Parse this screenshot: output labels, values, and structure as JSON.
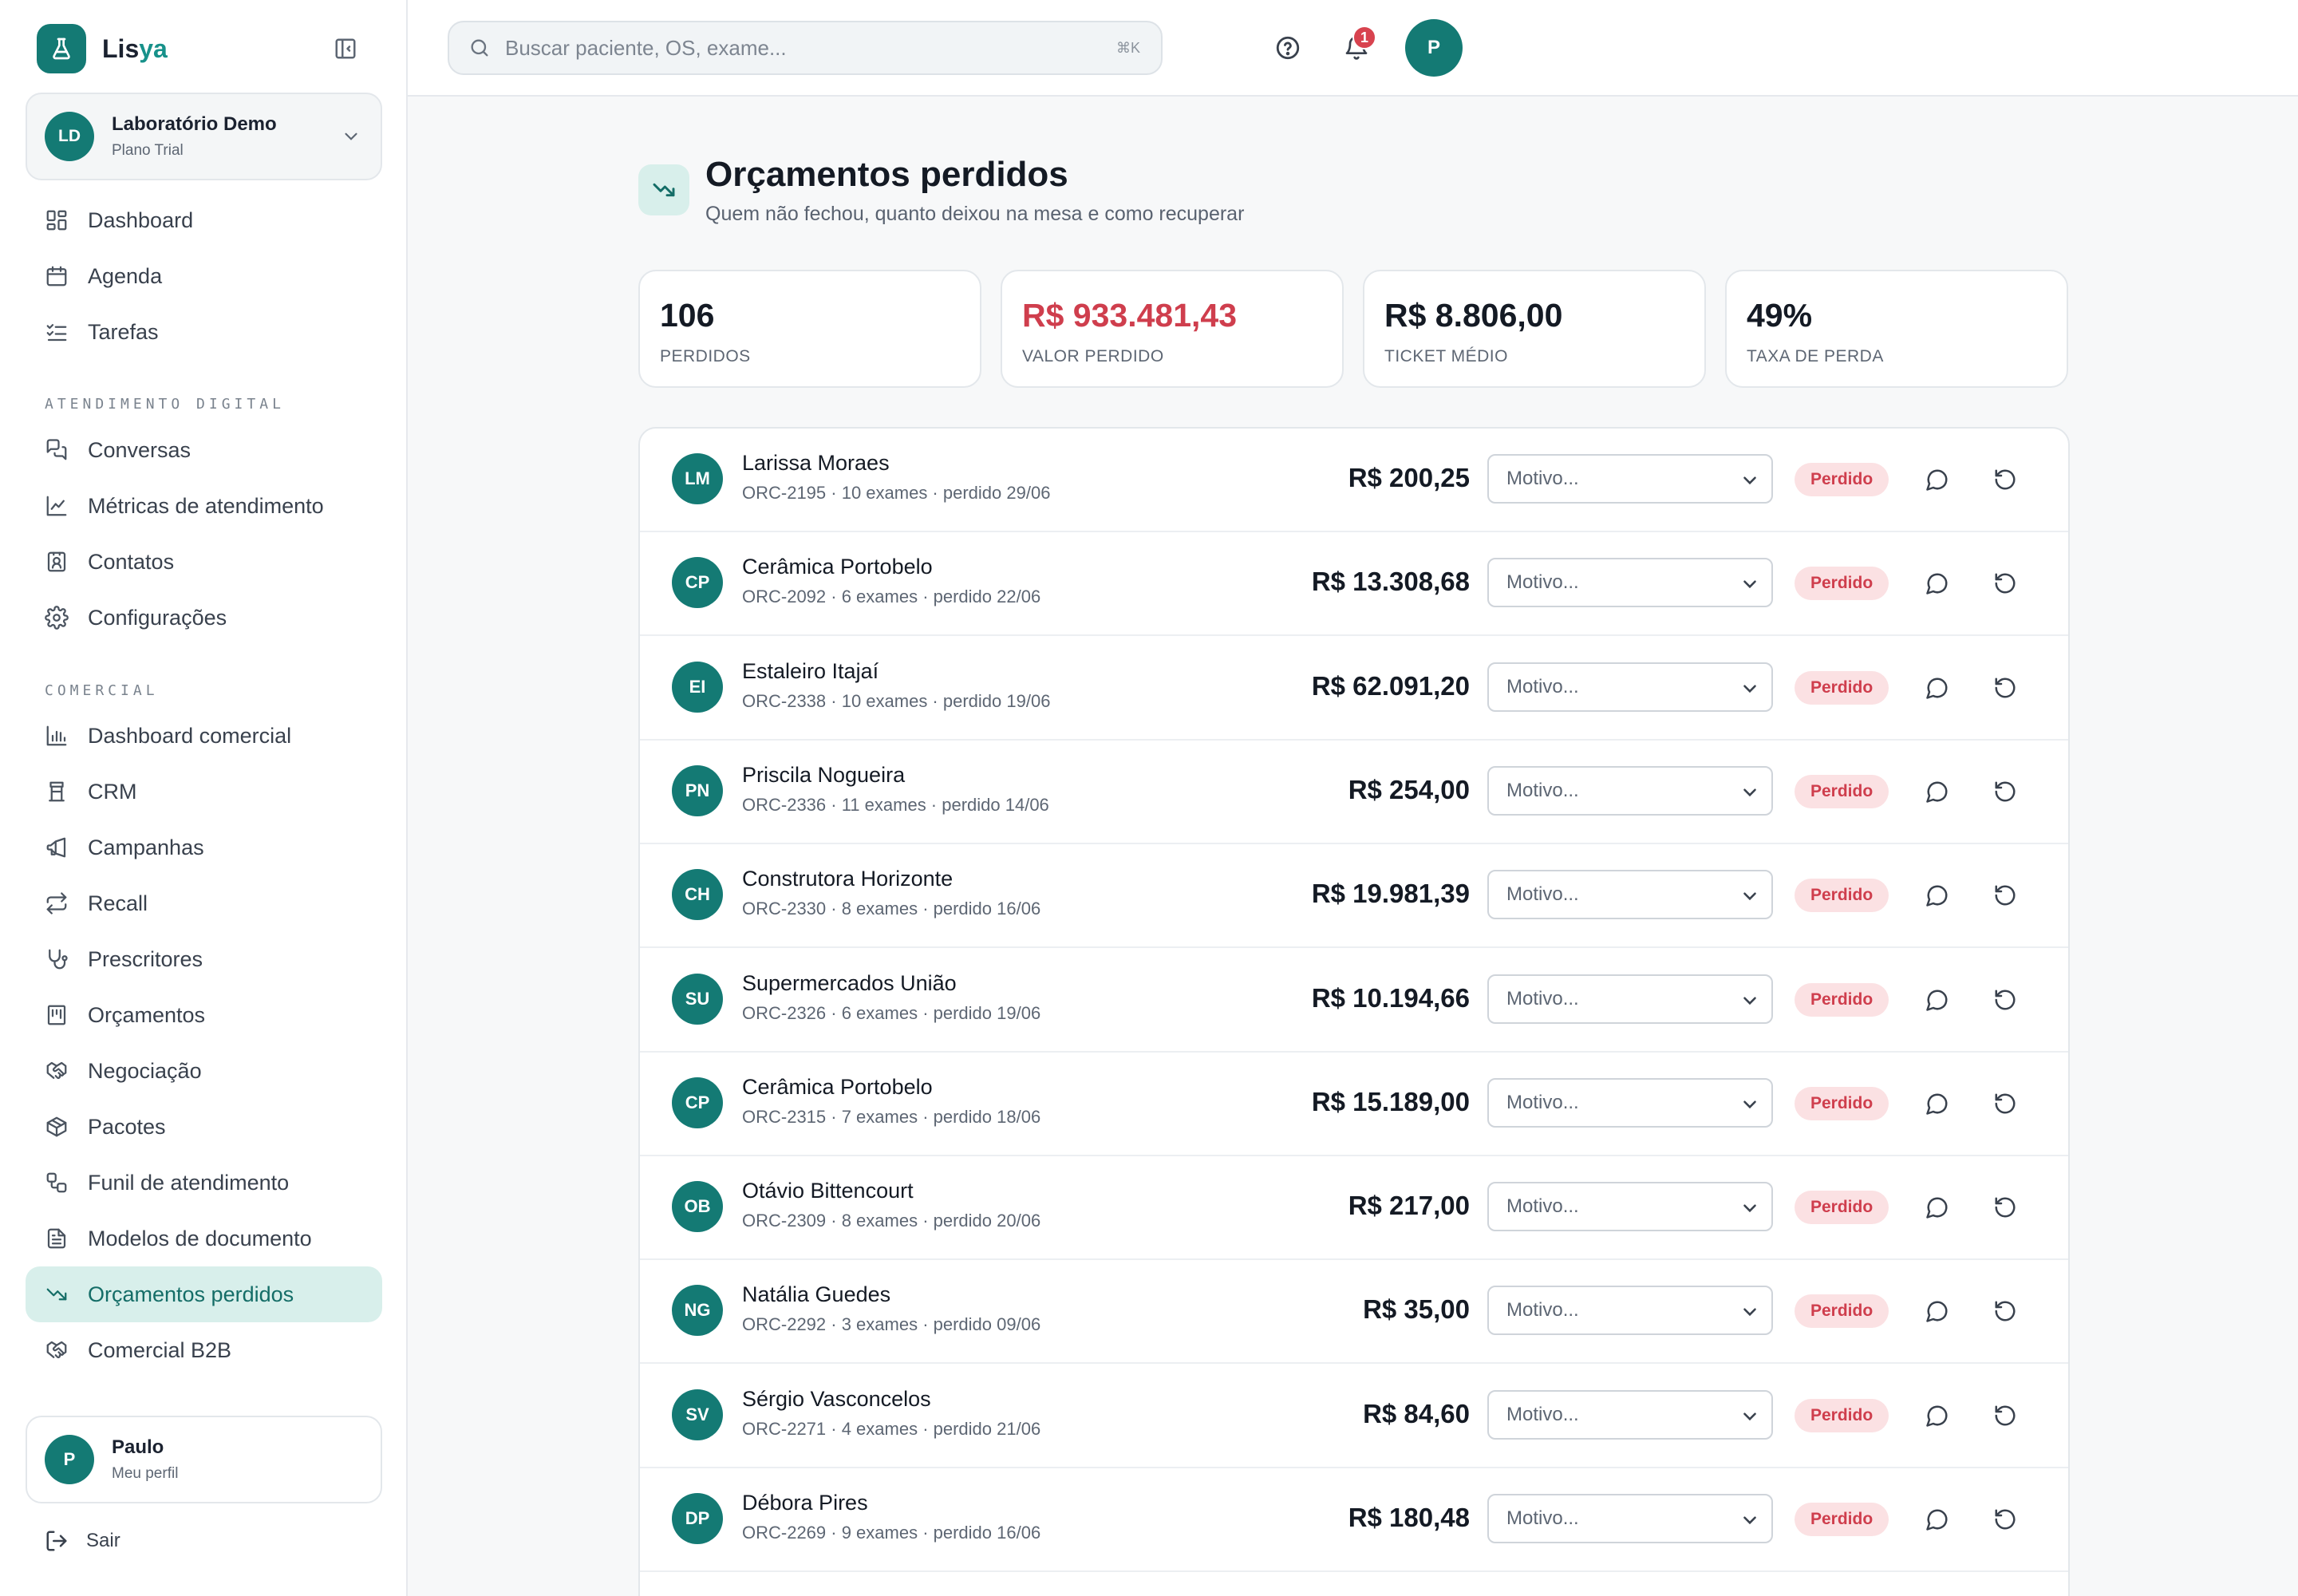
{
  "brand": {
    "name_main": "Lis",
    "name_accent": "ya"
  },
  "org": {
    "initials": "LD",
    "name": "Laboratório Demo",
    "plan": "Plano Trial"
  },
  "nav_top": [
    {
      "label": "Dashboard",
      "icon": "grid-icon"
    },
    {
      "label": "Agenda",
      "icon": "calendar-icon"
    },
    {
      "label": "Tarefas",
      "icon": "checklist-icon"
    }
  ],
  "section_digital": "ATENDIMENTO DIGITAL",
  "nav_digital": [
    {
      "label": "Conversas",
      "icon": "chat-bubbles-icon"
    },
    {
      "label": "Métricas de atendimento",
      "icon": "line-chart-icon"
    },
    {
      "label": "Contatos",
      "icon": "contact-card-icon"
    },
    {
      "label": "Configurações",
      "icon": "gear-icon"
    }
  ],
  "section_comercial": "COMERCIAL",
  "nav_comercial": [
    {
      "label": "Dashboard comercial",
      "icon": "bar-chart-icon"
    },
    {
      "label": "CRM",
      "icon": "crm-icon"
    },
    {
      "label": "Campanhas",
      "icon": "megaphone-icon"
    },
    {
      "label": "Recall",
      "icon": "repeat-icon"
    },
    {
      "label": "Prescritores",
      "icon": "stethoscope-icon"
    },
    {
      "label": "Orçamentos",
      "icon": "receipt-icon"
    },
    {
      "label": "Negociação",
      "icon": "handshake-icon"
    },
    {
      "label": "Pacotes",
      "icon": "package-icon"
    },
    {
      "label": "Funil de atendimento",
      "icon": "workflow-icon"
    },
    {
      "label": "Modelos de documento",
      "icon": "document-icon"
    },
    {
      "label": "Orçamentos perdidos",
      "icon": "trending-down-icon",
      "active": true
    },
    {
      "label": "Comercial B2B",
      "icon": "handshake-icon"
    }
  ],
  "profile": {
    "initials": "P",
    "name": "Paulo",
    "sub": "Meu perfil"
  },
  "logout_label": "Sair",
  "search": {
    "placeholder": "Buscar paciente, OS, exame...",
    "shortcut": "⌘K"
  },
  "notifications_count": "1",
  "user_initial": "P",
  "page": {
    "title": "Orçamentos perdidos",
    "subtitle": "Quem não fechou, quanto deixou na mesa e como recuperar"
  },
  "stats": [
    {
      "value": "106",
      "label": "PERDIDOS"
    },
    {
      "value": "R$ 933.481,43",
      "label": "VALOR PERDIDO",
      "accent": "#cf3e4d"
    },
    {
      "value": "R$ 8.806,00",
      "label": "TICKET MÉDIO"
    },
    {
      "value": "49%",
      "label": "TAXA DE PERDA"
    }
  ],
  "reason_placeholder": "Motivo...",
  "status_label": "Perdido",
  "rows": [
    {
      "initials": "LM",
      "name": "Larissa Moraes",
      "meta": "ORC-2195 · 10 exames · perdido 29/06",
      "amount": "R$ 200,25"
    },
    {
      "initials": "CP",
      "name": "Cerâmica Portobelo",
      "meta": "ORC-2092 · 6 exames · perdido 22/06",
      "amount": "R$ 13.308,68"
    },
    {
      "initials": "EI",
      "name": "Estaleiro Itajaí",
      "meta": "ORC-2338 · 10 exames · perdido 19/06",
      "amount": "R$ 62.091,20"
    },
    {
      "initials": "PN",
      "name": "Priscila Nogueira",
      "meta": "ORC-2336 · 11 exames · perdido 14/06",
      "amount": "R$ 254,00"
    },
    {
      "initials": "CH",
      "name": "Construtora Horizonte",
      "meta": "ORC-2330 · 8 exames · perdido 16/06",
      "amount": "R$ 19.981,39"
    },
    {
      "initials": "SU",
      "name": "Supermercados União",
      "meta": "ORC-2326 · 6 exames · perdido 19/06",
      "amount": "R$ 10.194,66"
    },
    {
      "initials": "CP",
      "name": "Cerâmica Portobelo",
      "meta": "ORC-2315 · 7 exames · perdido 18/06",
      "amount": "R$ 15.189,00"
    },
    {
      "initials": "OB",
      "name": "Otávio Bittencourt",
      "meta": "ORC-2309 · 8 exames · perdido 20/06",
      "amount": "R$ 217,00"
    },
    {
      "initials": "NG",
      "name": "Natália Guedes",
      "meta": "ORC-2292 · 3 exames · perdido 09/06",
      "amount": "R$ 35,00"
    },
    {
      "initials": "SV",
      "name": "Sérgio Vasconcelos",
      "meta": "ORC-2271 · 4 exames · perdido 21/06",
      "amount": "R$ 84,60"
    },
    {
      "initials": "DP",
      "name": "Débora Pires",
      "meta": "ORC-2269 · 9 exames · perdido 16/06",
      "amount": "R$ 180,48"
    }
  ],
  "colors": {
    "brand": "#147a74",
    "danger": "#cf3e4d",
    "active_bg": "#d8efeb"
  }
}
